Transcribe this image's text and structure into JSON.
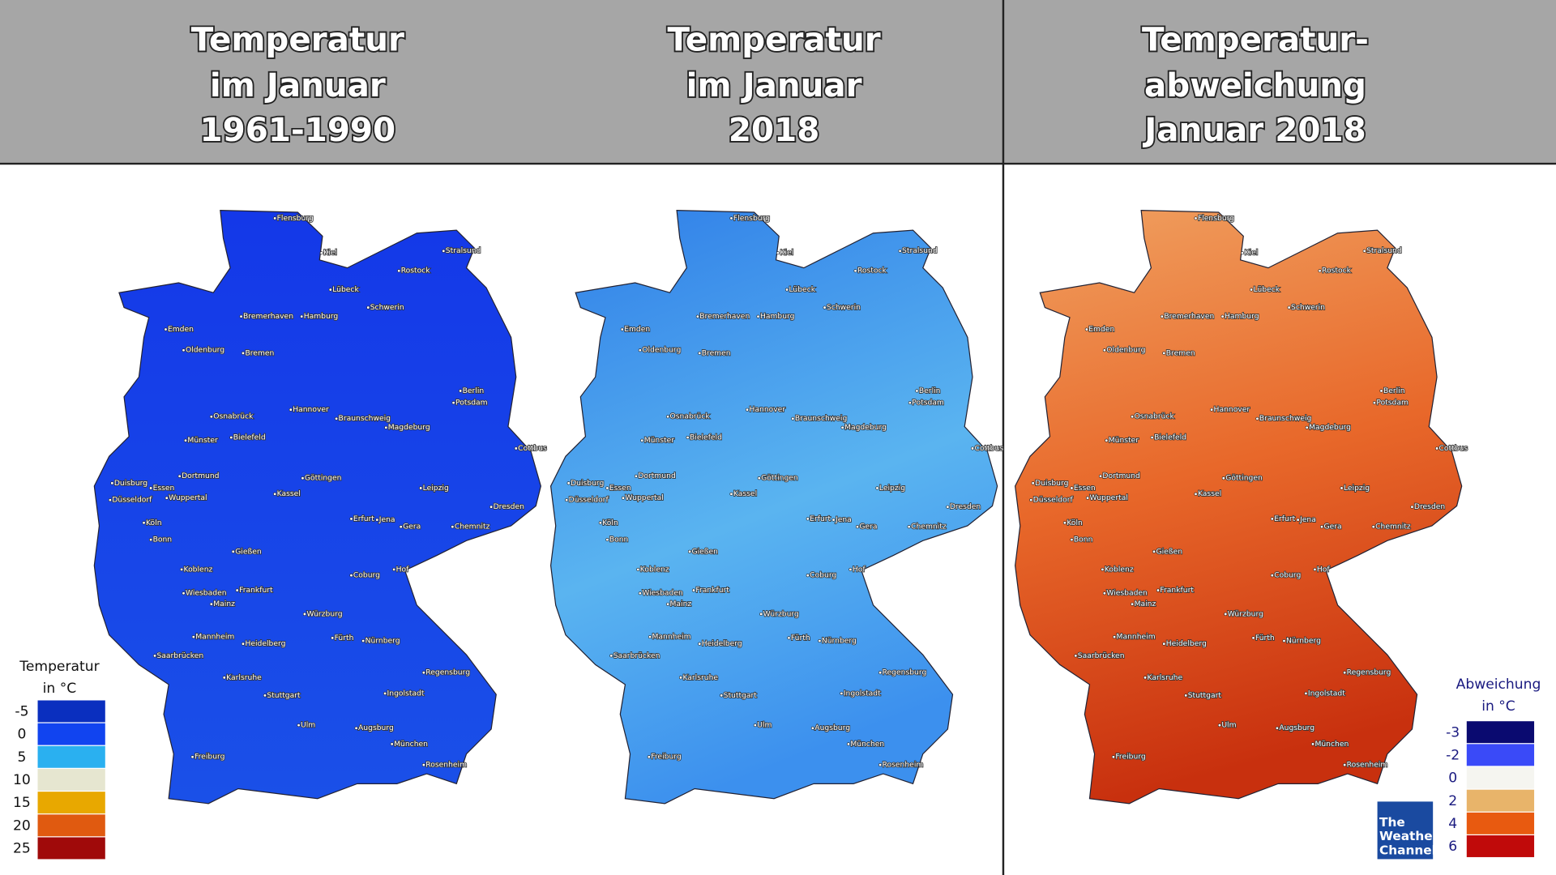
{
  "header": {
    "panels": [
      {
        "title": [
          "Temperatur",
          "im Januar",
          "1961-1990"
        ]
      },
      {
        "title": [
          "Temperatur",
          "im Januar",
          "2018"
        ]
      },
      {
        "title": [
          "Temperatur-",
          "abweichung",
          "Januar 2018"
        ]
      }
    ]
  },
  "cities": [
    "Flensburg",
    "Kiel",
    "Stralsund",
    "Rostock",
    "Lübeck",
    "Schwerin",
    "Emden",
    "Bremerhaven",
    "Hamburg",
    "Oldenburg",
    "Bremen",
    "Berlin",
    "Potsdam",
    "Hannover",
    "Osnabrück",
    "Braunschweig",
    "Magdeburg",
    "Münster",
    "Bielefeld",
    "Cottbus",
    "Dortmund",
    "Göttingen",
    "Duisburg",
    "Essen",
    "Leipzig",
    "Wuppertal",
    "Düsseldorf",
    "Kassel",
    "Dresden",
    "Erfurt",
    "Jena",
    "Gera",
    "Chemnitz",
    "Köln",
    "Bonn",
    "Gießen",
    "Koblenz",
    "Hof",
    "Coburg",
    "Frankfurt",
    "Wiesbaden",
    "Mainz",
    "Würzburg",
    "Mannheim",
    "Heidelberg",
    "Fürth",
    "Nürnberg",
    "Saarbrücken",
    "Regensburg",
    "Karlsruhe",
    "Stuttgart",
    "Ingolstadt",
    "Ulm",
    "Augsburg",
    "München",
    "Rosenheim",
    "Freiburg"
  ],
  "legend_left": {
    "title": [
      "Temperatur",
      "in °C"
    ],
    "items": [
      {
        "value": -5,
        "color": "#0a2fbf"
      },
      {
        "value": 0,
        "color": "#1144f0"
      },
      {
        "value": 5,
        "color": "#2ab0f0"
      },
      {
        "value": 10,
        "color": "#e6e6d0"
      },
      {
        "value": 15,
        "color": "#e8a800"
      },
      {
        "value": 20,
        "color": "#e05a10"
      },
      {
        "value": 25,
        "color": "#a00a0a"
      }
    ]
  },
  "legend_right": {
    "title": [
      "Abweichung",
      "in °C"
    ],
    "items": [
      {
        "value": -3,
        "color": "#0a0a70"
      },
      {
        "value": -2,
        "color": "#3a4af8"
      },
      {
        "value": 0,
        "color": "#f5f5f0"
      },
      {
        "value": 2,
        "color": "#e8b46a"
      },
      {
        "value": 4,
        "color": "#e85a10"
      },
      {
        "value": 6,
        "color": "#c00a0a"
      }
    ]
  },
  "logo": [
    "The",
    "Weather",
    "Channel"
  ]
}
